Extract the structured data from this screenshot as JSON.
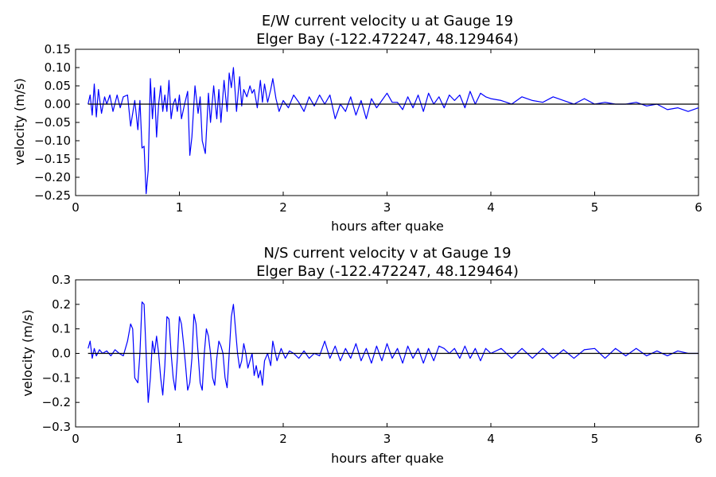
{
  "chart_data": [
    {
      "type": "line",
      "title": "E/W current velocity u at Gauge 19",
      "subtitle": "Elger Bay  (-122.472247, 48.129464)",
      "xlabel": "hours after quake",
      "ylabel": "velocity (m/s)",
      "xlim": [
        0,
        6
      ],
      "ylim": [
        -0.25,
        0.15
      ],
      "xticks": [
        "0",
        "1",
        "2",
        "3",
        "4",
        "5",
        "6"
      ],
      "yticks": [
        "0.15",
        "0.10",
        "0.05",
        "0.00",
        "−0.05",
        "−0.10",
        "−0.15",
        "−0.20",
        "−0.25"
      ],
      "grid": false,
      "line_color": "#0000ff",
      "zero_line_color": "#000000",
      "series": [
        {
          "x": [
            0.12,
            0.14,
            0.16,
            0.18,
            0.2,
            0.22,
            0.25,
            0.28,
            0.3,
            0.33,
            0.36,
            0.4,
            0.43,
            0.46,
            0.5,
            0.53,
            0.55,
            0.57,
            0.6,
            0.62,
            0.64,
            0.66,
            0.68,
            0.7,
            0.72,
            0.74,
            0.76,
            0.78,
            0.8,
            0.82,
            0.84,
            0.86,
            0.88,
            0.9,
            0.92,
            0.94,
            0.96,
            0.98,
            1.0,
            1.02,
            1.05,
            1.08,
            1.1,
            1.12,
            1.15,
            1.18,
            1.2,
            1.22,
            1.25,
            1.28,
            1.3,
            1.33,
            1.36,
            1.38,
            1.4,
            1.43,
            1.46,
            1.48,
            1.5,
            1.52,
            1.55,
            1.58,
            1.6,
            1.62,
            1.65,
            1.68,
            1.7,
            1.72,
            1.75,
            1.78,
            1.8,
            1.82,
            1.85,
            1.88,
            1.9,
            1.93,
            1.96,
            2.0,
            2.05,
            2.1,
            2.15,
            2.2,
            2.25,
            2.3,
            2.35,
            2.4,
            2.45,
            2.5,
            2.55,
            2.6,
            2.65,
            2.7,
            2.75,
            2.8,
            2.85,
            2.9,
            2.95,
            3.0,
            3.05,
            3.1,
            3.15,
            3.2,
            3.25,
            3.3,
            3.35,
            3.4,
            3.45,
            3.5,
            3.55,
            3.6,
            3.65,
            3.7,
            3.75,
            3.8,
            3.85,
            3.9,
            3.95,
            4.0,
            4.1,
            4.2,
            4.3,
            4.4,
            4.5,
            4.6,
            4.7,
            4.8,
            4.9,
            5.0,
            5.1,
            5.2,
            5.3,
            5.4,
            5.5,
            5.6,
            5.7,
            5.8,
            5.9,
            6.0
          ],
          "values": [
            0.0,
            0.025,
            -0.03,
            0.055,
            -0.035,
            0.04,
            -0.025,
            0.02,
            0.0,
            0.025,
            -0.02,
            0.025,
            -0.01,
            0.02,
            0.025,
            -0.06,
            -0.025,
            0.01,
            -0.07,
            0.01,
            -0.12,
            -0.115,
            -0.245,
            -0.18,
            0.07,
            -0.04,
            0.045,
            -0.09,
            0.0,
            0.05,
            -0.02,
            0.025,
            -0.02,
            0.065,
            -0.04,
            0.0,
            0.015,
            -0.02,
            0.025,
            -0.04,
            0.0,
            0.035,
            -0.14,
            -0.09,
            0.05,
            -0.025,
            0.02,
            -0.1,
            -0.135,
            0.03,
            -0.05,
            0.05,
            -0.04,
            0.04,
            -0.05,
            0.065,
            -0.02,
            0.085,
            0.045,
            0.1,
            -0.02,
            0.075,
            -0.005,
            0.04,
            0.02,
            0.05,
            0.03,
            0.04,
            -0.01,
            0.065,
            0.005,
            0.055,
            0.005,
            0.04,
            0.07,
            0.015,
            -0.02,
            0.01,
            -0.01,
            0.025,
            0.005,
            -0.02,
            0.02,
            -0.005,
            0.025,
            0.0,
            0.025,
            -0.04,
            0.0,
            -0.02,
            0.02,
            -0.03,
            0.01,
            -0.04,
            0.015,
            -0.01,
            0.01,
            0.03,
            0.005,
            0.005,
            -0.015,
            0.02,
            -0.01,
            0.025,
            -0.02,
            0.03,
            0.0,
            0.02,
            -0.01,
            0.025,
            0.01,
            0.025,
            -0.01,
            0.035,
            0.0,
            0.03,
            0.02,
            0.015,
            0.01,
            0.0,
            0.02,
            0.01,
            0.005,
            0.02,
            0.01,
            0.0,
            0.015,
            0.0,
            0.005,
            0.0,
            0.0,
            0.005,
            -0.005,
            0.0,
            -0.015,
            -0.01,
            -0.02,
            -0.01
          ]
        }
      ]
    },
    {
      "type": "line",
      "title": "N/S current velocity v at Gauge 19",
      "subtitle": "Elger Bay  (-122.472247, 48.129464)",
      "xlabel": "hours after quake",
      "ylabel": "velocity (m/s)",
      "xlim": [
        0,
        6
      ],
      "ylim": [
        -0.3,
        0.3
      ],
      "xticks": [
        "0",
        "1",
        "2",
        "3",
        "4",
        "5",
        "6"
      ],
      "yticks": [
        "0.3",
        "0.2",
        "0.1",
        "0.0",
        "−0.1",
        "−0.2",
        "−0.3"
      ],
      "grid": false,
      "line_color": "#0000ff",
      "zero_line_color": "#000000",
      "series": [
        {
          "x": [
            0.12,
            0.14,
            0.16,
            0.18,
            0.2,
            0.23,
            0.26,
            0.3,
            0.34,
            0.38,
            0.42,
            0.46,
            0.5,
            0.53,
            0.55,
            0.57,
            0.6,
            0.62,
            0.64,
            0.66,
            0.68,
            0.7,
            0.72,
            0.74,
            0.76,
            0.78,
            0.8,
            0.82,
            0.84,
            0.86,
            0.88,
            0.9,
            0.92,
            0.94,
            0.96,
            0.98,
            1.0,
            1.02,
            1.04,
            1.06,
            1.08,
            1.1,
            1.12,
            1.14,
            1.16,
            1.18,
            1.2,
            1.22,
            1.24,
            1.26,
            1.28,
            1.3,
            1.32,
            1.34,
            1.36,
            1.38,
            1.4,
            1.42,
            1.44,
            1.46,
            1.48,
            1.5,
            1.52,
            1.54,
            1.56,
            1.58,
            1.6,
            1.62,
            1.64,
            1.66,
            1.68,
            1.7,
            1.72,
            1.74,
            1.76,
            1.78,
            1.8,
            1.82,
            1.85,
            1.88,
            1.9,
            1.94,
            1.98,
            2.02,
            2.06,
            2.1,
            2.15,
            2.2,
            2.25,
            2.3,
            2.35,
            2.4,
            2.45,
            2.5,
            2.55,
            2.6,
            2.65,
            2.7,
            2.75,
            2.8,
            2.85,
            2.9,
            2.95,
            3.0,
            3.05,
            3.1,
            3.15,
            3.2,
            3.25,
            3.3,
            3.35,
            3.4,
            3.45,
            3.5,
            3.55,
            3.6,
            3.65,
            3.7,
            3.75,
            3.8,
            3.85,
            3.9,
            3.95,
            4.0,
            4.1,
            4.2,
            4.3,
            4.4,
            4.5,
            4.6,
            4.7,
            4.8,
            4.9,
            5.0,
            5.1,
            5.2,
            5.3,
            5.4,
            5.5,
            5.6,
            5.7,
            5.8,
            5.9,
            6.0
          ],
          "values": [
            0.02,
            0.05,
            -0.02,
            0.02,
            -0.01,
            0.015,
            0.0,
            0.01,
            -0.01,
            0.015,
            0.0,
            -0.01,
            0.05,
            0.12,
            0.1,
            -0.1,
            -0.12,
            0.0,
            0.21,
            0.2,
            0.0,
            -0.2,
            -0.1,
            0.05,
            0.0,
            0.07,
            0.0,
            -0.1,
            -0.17,
            -0.05,
            0.15,
            0.14,
            0.0,
            -0.1,
            -0.15,
            -0.02,
            0.15,
            0.12,
            0.04,
            -0.05,
            -0.15,
            -0.12,
            -0.02,
            0.16,
            0.12,
            0.0,
            -0.12,
            -0.15,
            0.0,
            0.1,
            0.07,
            0.0,
            -0.1,
            -0.13,
            -0.02,
            0.05,
            0.03,
            0.0,
            -0.1,
            -0.14,
            0.0,
            0.15,
            0.2,
            0.1,
            0.0,
            -0.06,
            -0.03,
            0.04,
            0.0,
            -0.06,
            -0.03,
            0.0,
            -0.09,
            -0.05,
            -0.1,
            -0.07,
            -0.13,
            -0.03,
            0.0,
            -0.05,
            0.05,
            -0.03,
            0.02,
            -0.02,
            0.01,
            0.0,
            -0.02,
            0.01,
            -0.02,
            0.0,
            -0.01,
            0.05,
            -0.02,
            0.03,
            -0.03,
            0.02,
            -0.02,
            0.04,
            -0.03,
            0.02,
            -0.04,
            0.03,
            -0.03,
            0.04,
            -0.02,
            0.02,
            -0.04,
            0.03,
            -0.02,
            0.02,
            -0.04,
            0.02,
            -0.03,
            0.03,
            0.02,
            0.0,
            0.02,
            -0.02,
            0.03,
            -0.02,
            0.02,
            -0.03,
            0.02,
            0.0,
            0.02,
            -0.02,
            0.02,
            -0.02,
            0.02,
            -0.02,
            0.015,
            -0.02,
            0.015,
            0.02,
            -0.02,
            0.02,
            -0.01,
            0.02,
            -0.01,
            0.01,
            -0.01,
            0.01,
            0.0,
            0.0
          ]
        }
      ]
    }
  ]
}
